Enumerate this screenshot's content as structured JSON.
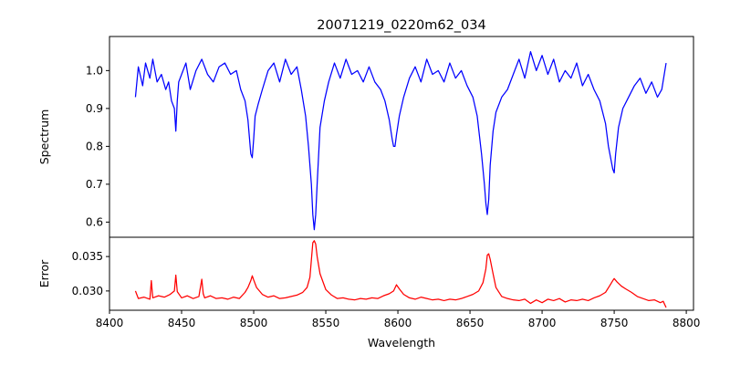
{
  "chart_data": [
    {
      "type": "line",
      "title": "20071219_0220m62_034",
      "xlabel": "",
      "ylabel": "Spectrum",
      "xlim": [
        8400,
        8805
      ],
      "ylim": [
        0.56,
        1.09
      ],
      "yticks": [
        "0.6",
        "0.7",
        "0.8",
        "0.9",
        "1.0"
      ],
      "color": "#0000ff",
      "series": [
        {
          "x": [
            8418,
            8420,
            8423,
            8425,
            8428,
            8430,
            8433,
            8436,
            8439,
            8441,
            8443,
            8445,
            8446,
            8447,
            8448,
            8450,
            8453,
            8456,
            8460,
            8464,
            8468,
            8472,
            8476,
            8480,
            8484,
            8488,
            8491,
            8494,
            8496,
            8498,
            8499,
            8500,
            8501,
            8503,
            8506,
            8510,
            8514,
            8518,
            8522,
            8526,
            8530,
            8533,
            8536,
            8538,
            8540,
            8541,
            8542,
            8543,
            8544,
            8546,
            8549,
            8552,
            8556,
            8560,
            8564,
            8568,
            8572,
            8576,
            8580,
            8584,
            8588,
            8591,
            8594,
            8596,
            8597,
            8598,
            8599,
            8601,
            8604,
            8608,
            8612,
            8616,
            8620,
            8624,
            8628,
            8632,
            8636,
            8640,
            8644,
            8648,
            8652,
            8655,
            8658,
            8660,
            8661,
            8662,
            8663,
            8664,
            8666,
            8668,
            8672,
            8676,
            8680,
            8684,
            8688,
            8692,
            8696,
            8700,
            8704,
            8708,
            8712,
            8716,
            8720,
            8724,
            8728,
            8732,
            8736,
            8740,
            8744,
            8746,
            8748,
            8749,
            8750,
            8751,
            8753,
            8756,
            8760,
            8764,
            8768,
            8772,
            8776,
            8780,
            8783,
            8786
          ],
          "y": [
            0.93,
            1.01,
            0.96,
            1.02,
            0.98,
            1.03,
            0.97,
            0.99,
            0.95,
            0.97,
            0.92,
            0.9,
            0.84,
            0.92,
            0.97,
            0.99,
            1.02,
            0.95,
            1.0,
            1.03,
            0.99,
            0.97,
            1.01,
            1.02,
            0.99,
            1.0,
            0.95,
            0.92,
            0.87,
            0.78,
            0.77,
            0.82,
            0.88,
            0.91,
            0.95,
            1.0,
            1.02,
            0.97,
            1.03,
            0.99,
            1.01,
            0.95,
            0.88,
            0.8,
            0.7,
            0.62,
            0.58,
            0.62,
            0.7,
            0.85,
            0.92,
            0.97,
            1.02,
            0.98,
            1.03,
            0.99,
            1.0,
            0.97,
            1.01,
            0.97,
            0.95,
            0.92,
            0.87,
            0.82,
            0.8,
            0.8,
            0.83,
            0.88,
            0.93,
            0.98,
            1.01,
            0.97,
            1.03,
            0.99,
            1.0,
            0.97,
            1.02,
            0.98,
            1.0,
            0.96,
            0.93,
            0.88,
            0.78,
            0.7,
            0.65,
            0.62,
            0.66,
            0.75,
            0.84,
            0.89,
            0.93,
            0.95,
            0.99,
            1.03,
            0.98,
            1.05,
            1.0,
            1.04,
            0.99,
            1.03,
            0.97,
            1.0,
            0.98,
            1.02,
            0.96,
            0.99,
            0.95,
            0.92,
            0.86,
            0.8,
            0.76,
            0.74,
            0.73,
            0.78,
            0.85,
            0.9,
            0.93,
            0.96,
            0.98,
            0.94,
            0.97,
            0.93,
            0.95,
            1.02
          ]
        }
      ]
    },
    {
      "type": "line",
      "title": "",
      "xlabel": "Wavelength",
      "ylabel": "Error",
      "xlim": [
        8400,
        8805
      ],
      "ylim": [
        0.0272,
        0.0378
      ],
      "xticks": [
        "8400",
        "8450",
        "8500",
        "8550",
        "8600",
        "8650",
        "8700",
        "8750",
        "8800"
      ],
      "yticks": [
        "0.030",
        "0.035"
      ],
      "color": "#ff0000",
      "series": [
        {
          "x": [
            8418,
            8420,
            8424,
            8428,
            8429,
            8430,
            8434,
            8438,
            8442,
            8445,
            8446,
            8447,
            8450,
            8454,
            8458,
            8462,
            8464,
            8465,
            8466,
            8470,
            8474,
            8478,
            8482,
            8486,
            8490,
            8494,
            8496,
            8498,
            8499,
            8500,
            8502,
            8506,
            8510,
            8514,
            8518,
            8522,
            8526,
            8530,
            8534,
            8537,
            8539,
            8540,
            8541,
            8542,
            8543,
            8544,
            8546,
            8550,
            8554,
            8558,
            8562,
            8566,
            8570,
            8574,
            8578,
            8582,
            8586,
            8590,
            8594,
            8597,
            8599,
            8601,
            8604,
            8608,
            8612,
            8616,
            8620,
            8624,
            8628,
            8632,
            8636,
            8640,
            8644,
            8648,
            8652,
            8656,
            8659,
            8661,
            8662,
            8663,
            8664,
            8666,
            8668,
            8672,
            8676,
            8680,
            8684,
            8688,
            8692,
            8696,
            8700,
            8704,
            8708,
            8712,
            8716,
            8720,
            8724,
            8728,
            8732,
            8736,
            8740,
            8744,
            8747,
            8749,
            8750,
            8752,
            8755,
            8758,
            8762,
            8766,
            8770,
            8774,
            8778,
            8782,
            8784,
            8786
          ],
          "y": [
            0.03,
            0.0289,
            0.0291,
            0.0288,
            0.0315,
            0.029,
            0.0293,
            0.0291,
            0.0295,
            0.03,
            0.0323,
            0.0299,
            0.029,
            0.0293,
            0.0289,
            0.0292,
            0.0317,
            0.0296,
            0.029,
            0.0293,
            0.0289,
            0.029,
            0.0288,
            0.0291,
            0.0289,
            0.0298,
            0.0305,
            0.0315,
            0.0322,
            0.0316,
            0.0305,
            0.0295,
            0.0291,
            0.0293,
            0.0289,
            0.029,
            0.0292,
            0.0294,
            0.0298,
            0.0305,
            0.032,
            0.0345,
            0.037,
            0.0373,
            0.0368,
            0.035,
            0.0325,
            0.0302,
            0.0294,
            0.0289,
            0.029,
            0.0288,
            0.0287,
            0.0289,
            0.0288,
            0.029,
            0.0289,
            0.0293,
            0.0296,
            0.03,
            0.0309,
            0.0303,
            0.0295,
            0.029,
            0.0288,
            0.0291,
            0.0289,
            0.0287,
            0.0288,
            0.0286,
            0.0288,
            0.0287,
            0.0289,
            0.0292,
            0.0295,
            0.03,
            0.0312,
            0.0332,
            0.0352,
            0.0354,
            0.0346,
            0.0325,
            0.0305,
            0.0292,
            0.0289,
            0.0287,
            0.0286,
            0.0288,
            0.0282,
            0.0287,
            0.0283,
            0.0288,
            0.0286,
            0.0289,
            0.0284,
            0.0287,
            0.0286,
            0.0288,
            0.0286,
            0.029,
            0.0293,
            0.0298,
            0.0308,
            0.0315,
            0.0318,
            0.0313,
            0.0307,
            0.0303,
            0.0298,
            0.0292,
            0.0289,
            0.0286,
            0.0287,
            0.0283,
            0.0285,
            0.0276
          ]
        }
      ]
    }
  ]
}
